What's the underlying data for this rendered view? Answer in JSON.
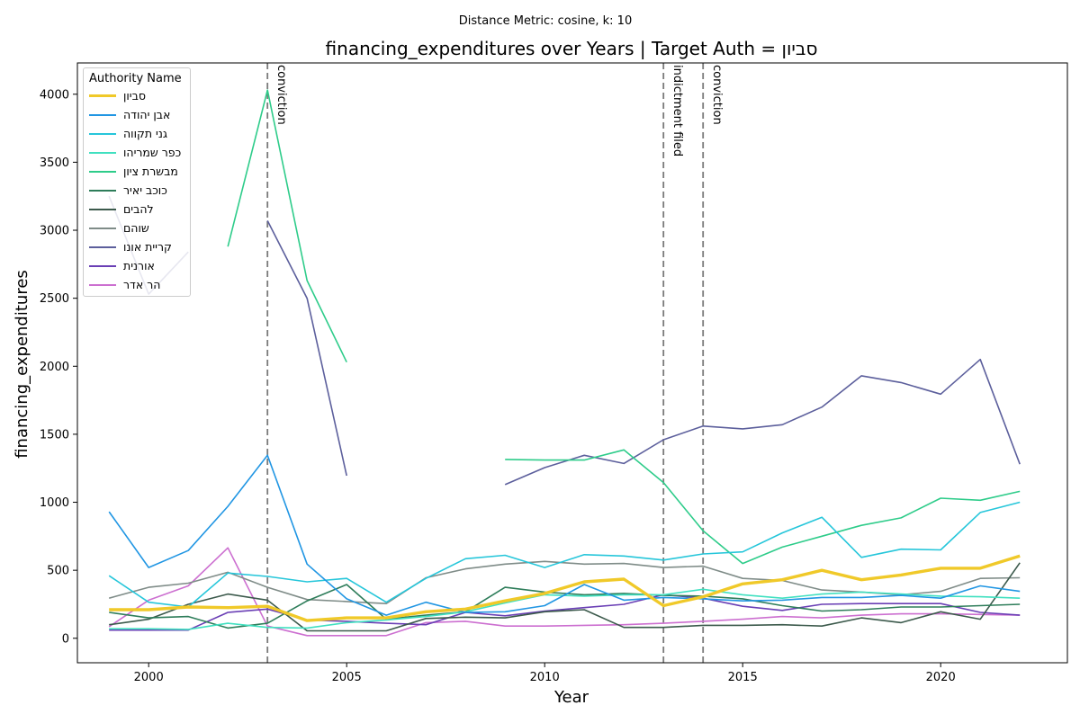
{
  "suptitle": "Distance Metric: cosine, k: 10",
  "chart_data": {
    "type": "line",
    "title": "financing_expenditures over Years | Target Auth = סביון",
    "xlabel": "Year",
    "ylabel": "financing_expenditures",
    "xlim": [
      1998.2,
      2023.2
    ],
    "ylim": [
      -180,
      4230
    ],
    "xticks": [
      2000,
      2005,
      2010,
      2015,
      2020
    ],
    "yticks": [
      0,
      500,
      1000,
      1500,
      2000,
      2500,
      3000,
      3500,
      4000
    ],
    "grid": false,
    "legend": {
      "title": "Authority Name",
      "placement": "top-left"
    },
    "events": [
      {
        "x": 2003,
        "label": "conviction"
      },
      {
        "x": 2013,
        "label": "indictment filed"
      },
      {
        "x": 2014,
        "label": "conviction"
      }
    ],
    "series": [
      {
        "name": "סביון",
        "color": "#f0c929",
        "width": 3.4,
        "values": [
          [
            1999,
            210
          ],
          [
            2000,
            210
          ],
          [
            2001,
            230
          ],
          [
            2002,
            225
          ],
          [
            2003,
            235
          ],
          [
            2004,
            130
          ],
          [
            2005,
            150
          ],
          [
            2006,
            150
          ],
          [
            2007,
            195
          ],
          [
            2008,
            215
          ],
          [
            2009,
            275
          ],
          [
            2010,
            330
          ],
          [
            2011,
            415
          ],
          [
            2012,
            435
          ],
          [
            2013,
            240
          ],
          [
            2014,
            305
          ],
          [
            2015,
            400
          ],
          [
            2016,
            430
          ],
          [
            2017,
            500
          ],
          [
            2018,
            430
          ],
          [
            2019,
            465
          ],
          [
            2020,
            515
          ],
          [
            2021,
            515
          ],
          [
            2022,
            605
          ]
        ]
      },
      {
        "name": "אבן יהודה",
        "color": "#2196e3",
        "width": 1.6,
        "values": [
          [
            1999,
            930
          ],
          [
            2000,
            520
          ],
          [
            2001,
            645
          ],
          [
            2002,
            970
          ],
          [
            2003,
            1345
          ],
          [
            2004,
            545
          ],
          [
            2005,
            290
          ],
          [
            2006,
            170
          ],
          [
            2007,
            265
          ],
          [
            2008,
            190
          ],
          [
            2009,
            195
          ],
          [
            2010,
            240
          ],
          [
            2011,
            395
          ],
          [
            2012,
            280
          ],
          [
            2013,
            300
          ],
          [
            2014,
            290
          ],
          [
            2015,
            275
          ],
          [
            2016,
            280
          ],
          [
            2017,
            300
          ],
          [
            2018,
            300
          ],
          [
            2019,
            315
          ],
          [
            2020,
            295
          ],
          [
            2021,
            385
          ],
          [
            2022,
            345
          ]
        ]
      },
      {
        "name": "גני תקווה",
        "color": "#26c6da",
        "width": 1.6,
        "values": [
          [
            1999,
            460
          ],
          [
            2000,
            265
          ],
          [
            2001,
            230
          ],
          [
            2002,
            480
          ],
          [
            2003,
            455
          ],
          [
            2004,
            415
          ],
          [
            2005,
            440
          ],
          [
            2006,
            265
          ],
          [
            2007,
            440
          ],
          [
            2008,
            585
          ],
          [
            2009,
            610
          ],
          [
            2010,
            520
          ],
          [
            2011,
            615
          ],
          [
            2012,
            605
          ],
          [
            2013,
            575
          ],
          [
            2014,
            620
          ],
          [
            2015,
            635
          ],
          [
            2016,
            775
          ],
          [
            2017,
            890
          ],
          [
            2018,
            595
          ],
          [
            2019,
            655
          ],
          [
            2020,
            650
          ],
          [
            2021,
            925
          ],
          [
            2022,
            1000
          ]
        ]
      },
      {
        "name": "כפר שמריהו",
        "color": "#40e0c0",
        "width": 1.6,
        "values": [
          [
            1999,
            70
          ],
          [
            2000,
            70
          ],
          [
            2001,
            65
          ],
          [
            2002,
            110
          ],
          [
            2003,
            80
          ],
          [
            2004,
            75
          ],
          [
            2005,
            115
          ],
          [
            2006,
            135
          ],
          [
            2007,
            160
          ],
          [
            2008,
            195
          ],
          [
            2009,
            260
          ],
          [
            2010,
            320
          ],
          [
            2011,
            310
          ],
          [
            2012,
            320
          ],
          [
            2013,
            320
          ],
          [
            2014,
            360
          ],
          [
            2015,
            320
          ],
          [
            2016,
            295
          ],
          [
            2017,
            325
          ],
          [
            2018,
            340
          ],
          [
            2019,
            325
          ],
          [
            2020,
            310
          ],
          [
            2021,
            305
          ],
          [
            2022,
            295
          ]
        ]
      },
      {
        "name": "מבשרת ציון",
        "color": "#2ecc8a",
        "width": 1.6,
        "values": [
          [
            1999,
            null
          ],
          [
            2000,
            null
          ],
          [
            2001,
            null
          ],
          [
            2002,
            2880
          ],
          [
            2003,
            4030
          ],
          [
            2004,
            2630
          ],
          [
            2005,
            2030
          ],
          [
            2006,
            null
          ],
          [
            2007,
            null
          ],
          [
            2008,
            null
          ],
          [
            2009,
            1315
          ],
          [
            2010,
            1310
          ],
          [
            2011,
            1310
          ],
          [
            2012,
            1385
          ],
          [
            2013,
            1145
          ],
          [
            2014,
            790
          ],
          [
            2015,
            550
          ],
          [
            2016,
            670
          ],
          [
            2017,
            750
          ],
          [
            2018,
            830
          ],
          [
            2019,
            885
          ],
          [
            2020,
            1030
          ],
          [
            2021,
            1015
          ],
          [
            2022,
            1080
          ]
        ]
      },
      {
        "name": "כוכב יאיר",
        "color": "#2e7d5a",
        "width": 1.6,
        "values": [
          [
            1999,
            190
          ],
          [
            2000,
            150
          ],
          [
            2001,
            160
          ],
          [
            2002,
            75
          ],
          [
            2003,
            110
          ],
          [
            2004,
            275
          ],
          [
            2005,
            395
          ],
          [
            2006,
            140
          ],
          [
            2007,
            170
          ],
          [
            2008,
            195
          ],
          [
            2009,
            375
          ],
          [
            2010,
            340
          ],
          [
            2011,
            320
          ],
          [
            2012,
            330
          ],
          [
            2013,
            315
          ],
          [
            2014,
            310
          ],
          [
            2015,
            290
          ],
          [
            2016,
            240
          ],
          [
            2017,
            200
          ],
          [
            2018,
            210
          ],
          [
            2019,
            230
          ],
          [
            2020,
            230
          ],
          [
            2021,
            240
          ],
          [
            2022,
            250
          ]
        ]
      },
      {
        "name": "להבים",
        "color": "#3c5a4c",
        "width": 1.6,
        "values": [
          [
            1999,
            100
          ],
          [
            2000,
            140
          ],
          [
            2001,
            250
          ],
          [
            2002,
            325
          ],
          [
            2003,
            280
          ],
          [
            2004,
            55
          ],
          [
            2005,
            55
          ],
          [
            2006,
            55
          ],
          [
            2007,
            145
          ],
          [
            2008,
            155
          ],
          [
            2009,
            150
          ],
          [
            2010,
            195
          ],
          [
            2011,
            210
          ],
          [
            2012,
            80
          ],
          [
            2013,
            80
          ],
          [
            2014,
            95
          ],
          [
            2015,
            95
          ],
          [
            2016,
            100
          ],
          [
            2017,
            90
          ],
          [
            2018,
            150
          ],
          [
            2019,
            115
          ],
          [
            2020,
            195
          ],
          [
            2021,
            140
          ],
          [
            2022,
            555
          ]
        ]
      },
      {
        "name": "שוהם",
        "color": "#7f8c88",
        "width": 1.6,
        "values": [
          [
            1999,
            295
          ],
          [
            2000,
            375
          ],
          [
            2001,
            405
          ],
          [
            2002,
            485
          ],
          [
            2003,
            375
          ],
          [
            2004,
            285
          ],
          [
            2005,
            270
          ],
          [
            2006,
            255
          ],
          [
            2007,
            445
          ],
          [
            2008,
            510
          ],
          [
            2009,
            545
          ],
          [
            2010,
            565
          ],
          [
            2011,
            545
          ],
          [
            2012,
            550
          ],
          [
            2013,
            520
          ],
          [
            2014,
            530
          ],
          [
            2015,
            440
          ],
          [
            2016,
            425
          ],
          [
            2017,
            355
          ],
          [
            2018,
            340
          ],
          [
            2019,
            320
          ],
          [
            2020,
            345
          ],
          [
            2021,
            440
          ],
          [
            2022,
            445
          ]
        ]
      },
      {
        "name": "קריית אונו",
        "color": "#5c5f9c",
        "width": 1.6,
        "values": [
          [
            1999,
            3250
          ],
          [
            2000,
            2530
          ],
          [
            2001,
            2840
          ],
          [
            2002,
            null
          ],
          [
            2003,
            3070
          ],
          [
            2004,
            2500
          ],
          [
            2005,
            1195
          ],
          [
            2006,
            null
          ],
          [
            2007,
            null
          ],
          [
            2008,
            null
          ],
          [
            2009,
            1130
          ],
          [
            2010,
            1255
          ],
          [
            2011,
            1345
          ],
          [
            2012,
            1285
          ],
          [
            2013,
            1460
          ],
          [
            2014,
            1560
          ],
          [
            2015,
            1540
          ],
          [
            2016,
            1570
          ],
          [
            2017,
            1700
          ],
          [
            2018,
            1930
          ],
          [
            2019,
            1880
          ],
          [
            2020,
            1795
          ],
          [
            2021,
            2050
          ],
          [
            2022,
            1280
          ]
        ]
      },
      {
        "name": "אורנית",
        "color": "#6a3fb5",
        "width": 1.6,
        "values": [
          [
            1999,
            60
          ],
          [
            2000,
            60
          ],
          [
            2001,
            60
          ],
          [
            2002,
            190
          ],
          [
            2003,
            215
          ],
          [
            2004,
            135
          ],
          [
            2005,
            125
          ],
          [
            2006,
            110
          ],
          [
            2007,
            100
          ],
          [
            2008,
            190
          ],
          [
            2009,
            165
          ],
          [
            2010,
            200
          ],
          [
            2011,
            225
          ],
          [
            2012,
            250
          ],
          [
            2013,
            320
          ],
          [
            2014,
            295
          ],
          [
            2015,
            235
          ],
          [
            2016,
            205
          ],
          [
            2017,
            250
          ],
          [
            2018,
            255
          ],
          [
            2019,
            255
          ],
          [
            2020,
            255
          ],
          [
            2021,
            190
          ],
          [
            2022,
            170
          ]
        ]
      },
      {
        "name": "הר אדר",
        "color": "#cc6fd0",
        "width": 1.6,
        "values": [
          [
            1999,
            85
          ],
          [
            2000,
            280
          ],
          [
            2001,
            385
          ],
          [
            2002,
            665
          ],
          [
            2003,
            90
          ],
          [
            2004,
            20
          ],
          [
            2005,
            20
          ],
          [
            2006,
            20
          ],
          [
            2007,
            115
          ],
          [
            2008,
            125
          ],
          [
            2009,
            90
          ],
          [
            2010,
            90
          ],
          [
            2011,
            95
          ],
          [
            2012,
            100
          ],
          [
            2013,
            110
          ],
          [
            2014,
            125
          ],
          [
            2015,
            140
          ],
          [
            2016,
            160
          ],
          [
            2017,
            150
          ],
          [
            2018,
            170
          ],
          [
            2019,
            180
          ],
          [
            2020,
            180
          ],
          [
            2021,
            175
          ],
          [
            2022,
            170
          ]
        ]
      }
    ]
  }
}
